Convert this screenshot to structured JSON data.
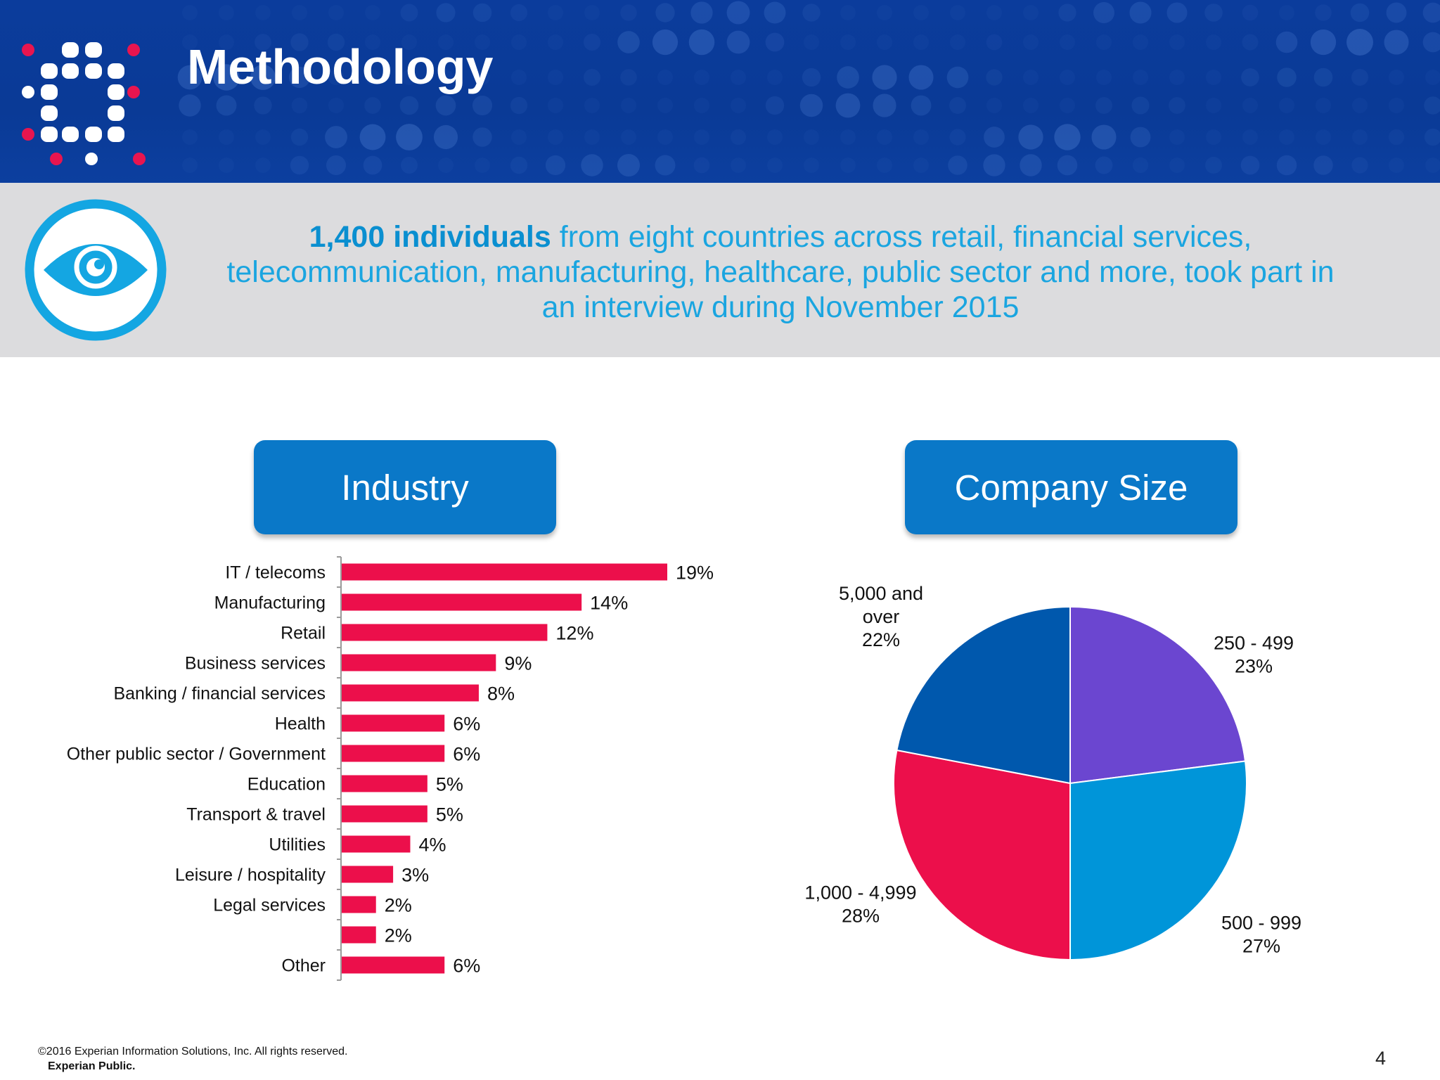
{
  "slide": {
    "title": "Methodology",
    "intro_lead": "1,400 individuals",
    "intro_rest": " from eight countries across retail, financial services, telecommunication, manufacturing, healthcare, public sector and more, took part in an interview during November 2015",
    "industry_heading": "Industry",
    "size_heading": "Company Size",
    "footer_copyright": "©2016 Experian Information Solutions, Inc. All rights reserved.",
    "footer_classification": "Experian Public.",
    "page_number": "4"
  },
  "colors": {
    "header_blue": "#0b3c9c",
    "band_gray": "#dcdcde",
    "accent_blue": "#1aa5e0",
    "bar_red": "#ec0f4b",
    "pill_blue": "#0a78c8"
  },
  "icons": {
    "logo": "experian-dot-logo",
    "eye": "eye-icon"
  },
  "chart_data": [
    {
      "type": "bar",
      "orientation": "horizontal",
      "categories": [
        "IT / telecoms",
        "Manufacturing",
        "Retail",
        "Business services",
        "Banking / financial services",
        "Health",
        "Other public sector / Government",
        "Education",
        "Transport & travel",
        "Utilities",
        "Leisure / hospitality",
        "Legal services",
        "",
        "Other"
      ],
      "values": [
        19,
        14,
        12,
        9,
        8,
        6,
        6,
        5,
        5,
        4,
        3,
        2,
        2,
        6
      ],
      "value_labels": [
        "19%",
        "14%",
        "12%",
        "9%",
        "8%",
        "6%",
        "6%",
        "5%",
        "5%",
        "4%",
        "3%",
        "2%",
        "2%",
        "6%"
      ],
      "color": "#ec0f4b",
      "title": "Industry",
      "xlim": [
        0,
        19.5
      ]
    },
    {
      "type": "pie",
      "title": "Company Size",
      "slices": [
        {
          "label_lines": [
            "250 - 499",
            "23%"
          ],
          "value": 23,
          "color": "#6b46d0"
        },
        {
          "label_lines": [
            "500 - 999",
            "27%"
          ],
          "value": 27,
          "color": "#0095d9"
        },
        {
          "label_lines": [
            "1,000 - 4,999",
            "28%"
          ],
          "value": 28,
          "color": "#ec0f4b"
        },
        {
          "label_lines": [
            "5,000 and",
            "over",
            "22%"
          ],
          "value": 22,
          "color": "#0058ad"
        }
      ]
    }
  ]
}
